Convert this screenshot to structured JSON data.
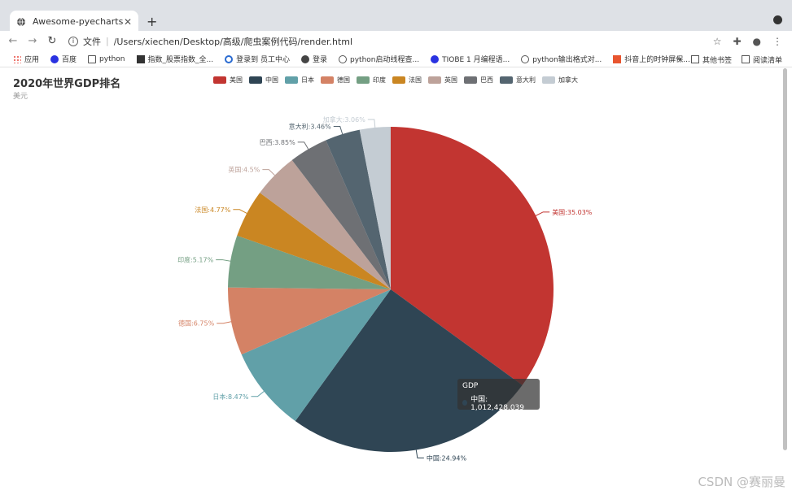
{
  "browser": {
    "tab_title": "Awesome-pyecharts",
    "address_label": "文件",
    "address": "/Users/xiechen/Desktop/高级/爬虫案例代码/render.html",
    "bookmarks": [
      "应用",
      "百度",
      "python",
      "指数_股票指数_全...",
      "登录到 员工中心",
      "登录",
      "python启动线程查...",
      "TIOBE 1 月编程语...",
      "python输出格式对...",
      "抖音上的时钟屏保..."
    ],
    "bookmarks_right": [
      "»",
      "其他书签",
      "阅读清单"
    ]
  },
  "chart_data": {
    "type": "pie",
    "title": "2020年世界GDP排名",
    "subtitle": "美元",
    "series_name": "GDP",
    "categories": [
      "美国",
      "中国",
      "日本",
      "德国",
      "印度",
      "法国",
      "英国",
      "巴西",
      "意大利",
      "加拿大"
    ],
    "percents": [
      35.03,
      24.94,
      8.47,
      6.75,
      5.17,
      4.77,
      4.5,
      3.85,
      3.46,
      3.06
    ],
    "slice_labels": [
      "美国:35.03%",
      "中国:24.94%",
      "日本:8.47%",
      "德国:6.75%",
      "印度:5.17%",
      "法国:4.77%",
      "英国:4.5%",
      "巴西:3.85%",
      "意大利:3.46%",
      "加拿大:3.06%"
    ],
    "colors": [
      "#c23531",
      "#2f4554",
      "#61a0a8",
      "#d48265",
      "#749f83",
      "#ca8622",
      "#bda29a",
      "#6e7074",
      "#546570",
      "#c4ccd3"
    ],
    "legend_placement": "top",
    "tooltip": {
      "title": "GDP",
      "text": "中国: 1,012,428.039",
      "color": "#2f4554"
    }
  },
  "watermark": "CSDN @赛丽曼"
}
